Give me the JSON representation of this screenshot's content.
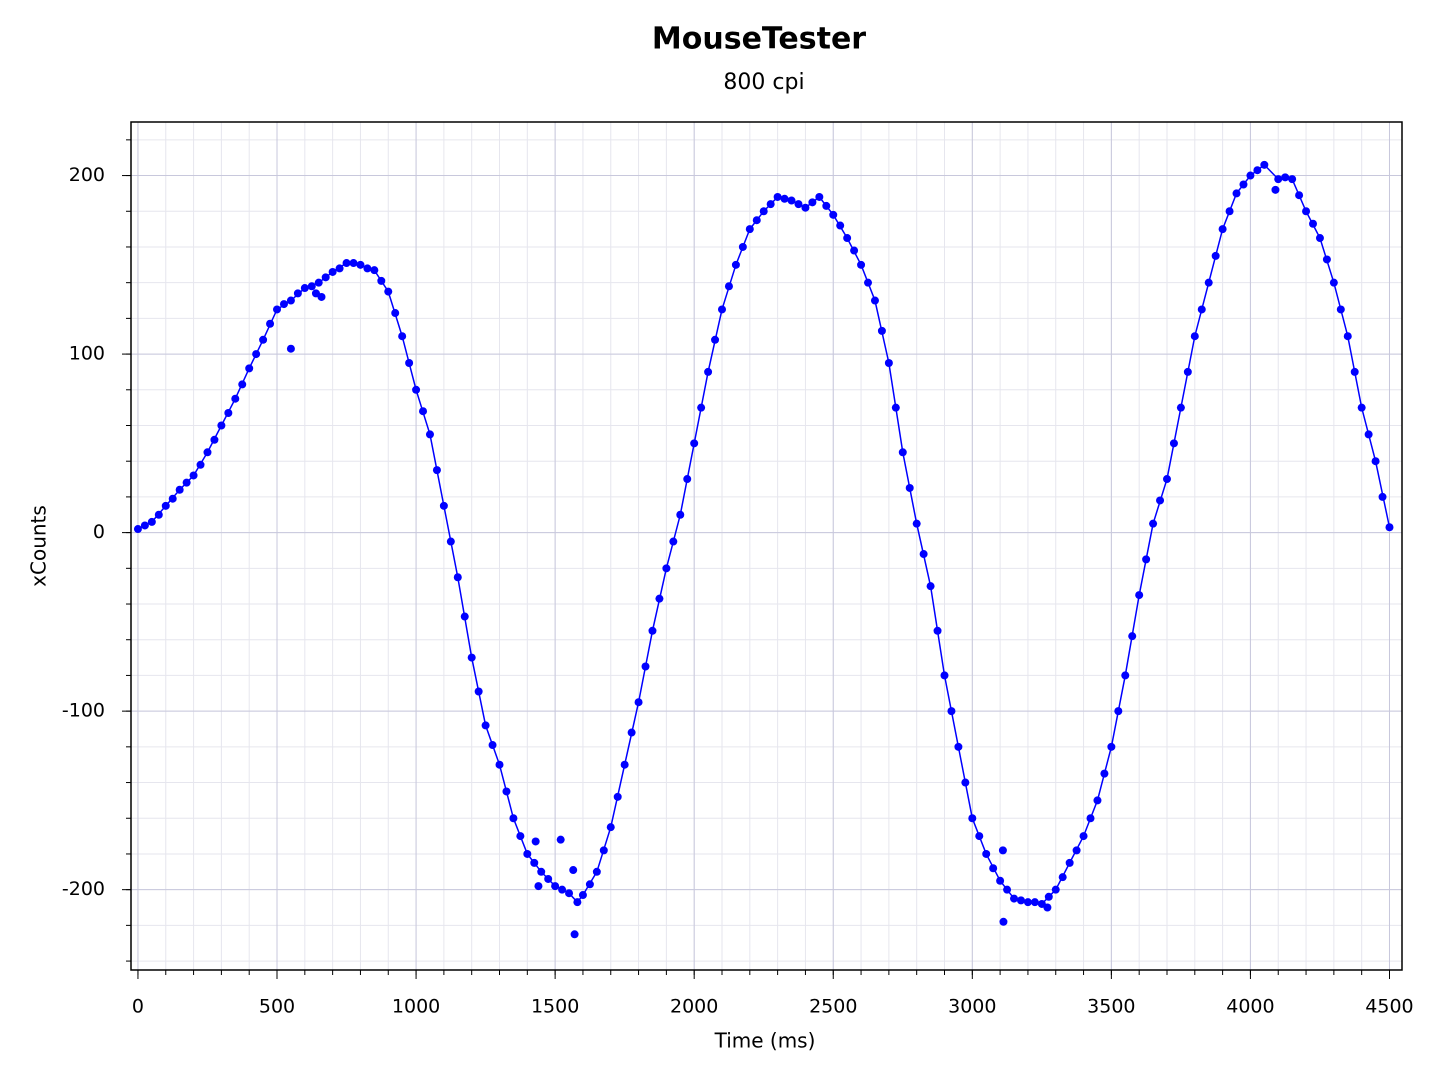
{
  "chart_data": {
    "type": "line",
    "title": "MouseTester",
    "subtitle": "800 cpi",
    "x_label": "Time (ms)",
    "y_label": "xCounts",
    "xlim": [
      -25,
      4545
    ],
    "ylim": [
      -245,
      230
    ],
    "xticks": [
      0,
      500,
      1000,
      1500,
      2000,
      2500,
      3000,
      3500,
      4000,
      4500
    ],
    "yticks": [
      -200,
      -100,
      0,
      100,
      200
    ],
    "xminorticks": [
      0,
      100,
      200,
      300,
      400,
      500,
      600,
      700,
      800,
      900,
      1000,
      1100,
      1200,
      1300,
      1400,
      1500,
      1600,
      1700,
      1800,
      1900,
      2000,
      2100,
      2200,
      2300,
      2400,
      2500,
      2600,
      2700,
      2800,
      2900,
      3000,
      3100,
      3200,
      3300,
      3400,
      3500,
      3600,
      3700,
      3800,
      3900,
      4000,
      4100,
      4200,
      4300,
      4400,
      4500
    ],
    "yminorticks": [
      -240,
      -220,
      -200,
      -180,
      -160,
      -140,
      -120,
      -100,
      -80,
      -60,
      -40,
      -20,
      0,
      20,
      40,
      60,
      80,
      100,
      120,
      140,
      160,
      180,
      200,
      220
    ],
    "grid": true,
    "series": [
      {
        "color": "#0000ff",
        "line": true,
        "marker": true,
        "x": [
          0,
          50,
          100,
          150,
          200,
          250,
          300,
          350,
          400,
          450,
          500,
          550,
          600,
          650,
          700,
          750,
          800,
          850,
          900,
          950,
          1000,
          1050,
          1100,
          1150,
          1200,
          1250,
          1300,
          1350,
          1400,
          1450,
          1500,
          1550,
          1580,
          1600,
          1650,
          1700,
          1750,
          1800,
          1850,
          1900,
          1950,
          2000,
          2050,
          2100,
          2150,
          2200,
          2250,
          2300,
          2350,
          2400,
          2450,
          2500,
          2550,
          2600,
          2650,
          2700,
          2750,
          2800,
          2850,
          2900,
          2950,
          3000,
          3050,
          3100,
          3150,
          3200,
          3250,
          3300,
          3350,
          3400,
          3450,
          3500,
          3550,
          3600,
          3650,
          3700,
          3750,
          3800,
          3850,
          3900,
          3950,
          4000,
          4050,
          4100,
          4150,
          4200,
          4250,
          4300,
          4350,
          4400,
          4450,
          4500
        ],
        "values": [
          2,
          6,
          15,
          24,
          32,
          45,
          60,
          75,
          92,
          108,
          125,
          130,
          137,
          140,
          146,
          151,
          150,
          147,
          135,
          110,
          80,
          55,
          15,
          -25,
          -70,
          -108,
          -130,
          -160,
          -180,
          -190,
          -198,
          -202,
          -207,
          -203,
          -190,
          -165,
          -130,
          -95,
          -55,
          -20,
          10,
          50,
          90,
          125,
          150,
          170,
          180,
          188,
          186,
          182,
          188,
          178,
          165,
          150,
          130,
          95,
          45,
          5,
          -30,
          -80,
          -120,
          -160,
          -180,
          -195,
          -205,
          -207,
          -208,
          -200,
          -185,
          -170,
          -150,
          -120,
          -80,
          -35,
          5,
          30,
          70,
          110,
          140,
          170,
          190,
          200,
          206,
          198,
          198,
          180,
          165,
          140,
          110,
          70,
          40,
          3
        ]
      },
      {
        "color": "#0000ff",
        "line": false,
        "marker": true,
        "x": [
          25,
          75,
          125,
          175,
          225,
          275,
          325,
          375,
          425,
          475,
          525,
          575,
          625,
          675,
          725,
          775,
          825,
          875,
          925,
          975,
          1025,
          1075,
          1125,
          1175,
          1225,
          1275,
          1325,
          1375,
          1425,
          1475,
          1525,
          1625,
          1675,
          1725,
          1775,
          1825,
          1875,
          1925,
          1975,
          2025,
          2075,
          2125,
          2175,
          2225,
          2275,
          2325,
          2375,
          2425,
          2475,
          2525,
          2575,
          2625,
          2675,
          2725,
          2775,
          2825,
          2875,
          2925,
          2975,
          3025,
          3075,
          3125,
          3175,
          3225,
          3275,
          3325,
          3375,
          3425,
          3475,
          3525,
          3575,
          3625,
          3675,
          3725,
          3775,
          3825,
          3875,
          3925,
          3975,
          4025,
          4125,
          4175,
          4225,
          4275,
          4325,
          4375,
          4425,
          4475,
          550,
          640,
          660,
          1430,
          1440,
          1520,
          1565,
          1570,
          3110,
          3112,
          3270,
          4090
        ],
        "values": [
          4,
          10,
          19,
          28,
          38,
          52,
          67,
          83,
          100,
          117,
          128,
          134,
          138,
          143,
          148,
          151,
          148,
          141,
          123,
          95,
          68,
          35,
          -5,
          -47,
          -89,
          -119,
          -145,
          -170,
          -185,
          -194,
          -200,
          -197,
          -178,
          -148,
          -112,
          -75,
          -37,
          -5,
          30,
          70,
          108,
          138,
          160,
          175,
          184,
          187,
          184,
          185,
          183,
          172,
          158,
          140,
          113,
          70,
          25,
          -12,
          -55,
          -100,
          -140,
          -170,
          -188,
          -200,
          -206,
          -207,
          -204,
          -193,
          -178,
          -160,
          -135,
          -100,
          -58,
          -15,
          18,
          50,
          90,
          125,
          155,
          180,
          195,
          203,
          199,
          189,
          173,
          153,
          125,
          90,
          55,
          20,
          103,
          134,
          132,
          -173,
          -198,
          -172,
          -189,
          -225,
          -178,
          -218,
          -210,
          192
        ]
      }
    ]
  }
}
